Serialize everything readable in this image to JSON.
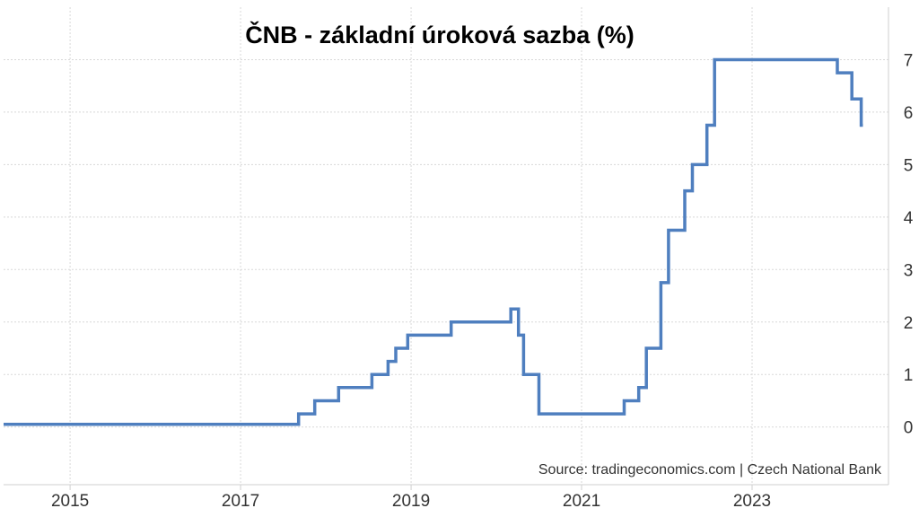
{
  "chart_data": {
    "type": "line",
    "title": "ČNB - základní úroková sazba (%)",
    "source": "Source: tradingeconomics.com | Czech National Bank",
    "xlabel": "",
    "ylabel": "",
    "x_ticks": [
      2015,
      2017,
      2019,
      2021,
      2023
    ],
    "y_ticks": [
      0,
      1,
      2,
      3,
      4,
      5,
      6,
      7
    ],
    "xlim": [
      2014.22,
      2024.6
    ],
    "ylim": [
      -1.1,
      8.0
    ],
    "grid": true,
    "y_axis_side": "right",
    "line_color": "#4f7fbf",
    "series": [
      {
        "values_step": [
          {
            "x": 2014.22,
            "y": 0.05
          },
          {
            "x": 2017.68,
            "y": 0.25
          },
          {
            "x": 2017.87,
            "y": 0.5
          },
          {
            "x": 2018.15,
            "y": 0.75
          },
          {
            "x": 2018.54,
            "y": 1.0
          },
          {
            "x": 2018.73,
            "y": 1.25
          },
          {
            "x": 2018.82,
            "y": 1.5
          },
          {
            "x": 2018.96,
            "y": 1.75
          },
          {
            "x": 2019.47,
            "y": 2.0
          },
          {
            "x": 2020.17,
            "y": 2.25
          },
          {
            "x": 2020.26,
            "y": 1.75
          },
          {
            "x": 2020.32,
            "y": 1.0
          },
          {
            "x": 2020.5,
            "y": 0.25
          },
          {
            "x": 2021.5,
            "y": 0.5
          },
          {
            "x": 2021.67,
            "y": 0.75
          },
          {
            "x": 2021.76,
            "y": 1.5
          },
          {
            "x": 2021.93,
            "y": 2.75
          },
          {
            "x": 2022.02,
            "y": 3.75
          },
          {
            "x": 2022.21,
            "y": 4.5
          },
          {
            "x": 2022.3,
            "y": 5.0
          },
          {
            "x": 2022.47,
            "y": 5.75
          },
          {
            "x": 2022.56,
            "y": 7.0
          },
          {
            "x": 2024.0,
            "y": 6.75
          },
          {
            "x": 2024.17,
            "y": 6.25
          },
          {
            "x": 2024.28,
            "y": 5.75
          }
        ],
        "end_x": 2024.3
      }
    ]
  }
}
